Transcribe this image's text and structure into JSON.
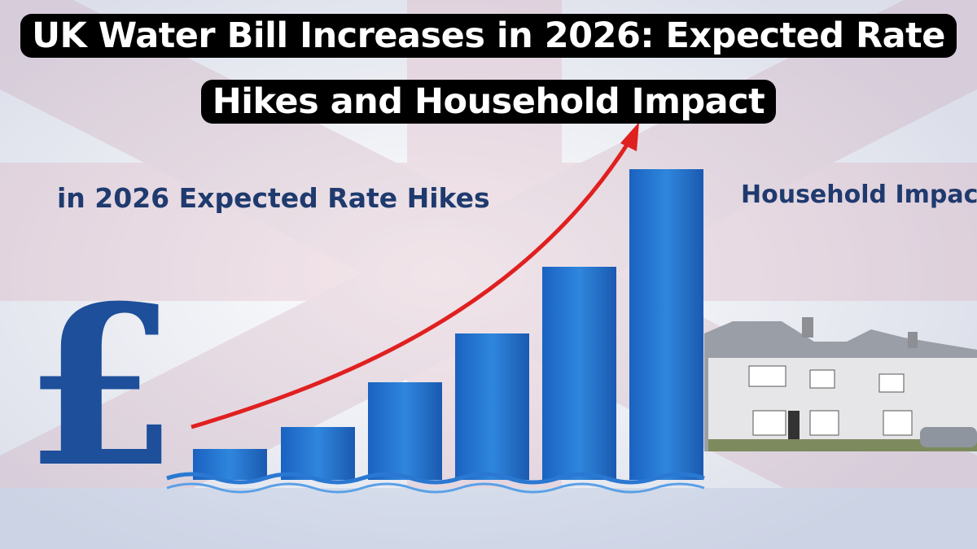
{
  "header": {
    "title": "UK Water Bill Increases in 2026: Expected Rate Hikes and Household Impact"
  },
  "illustration": {
    "left_caption": "in 2026 Expected Rate Hikes",
    "right_caption": "Household Impact",
    "symbol": "£"
  }
}
